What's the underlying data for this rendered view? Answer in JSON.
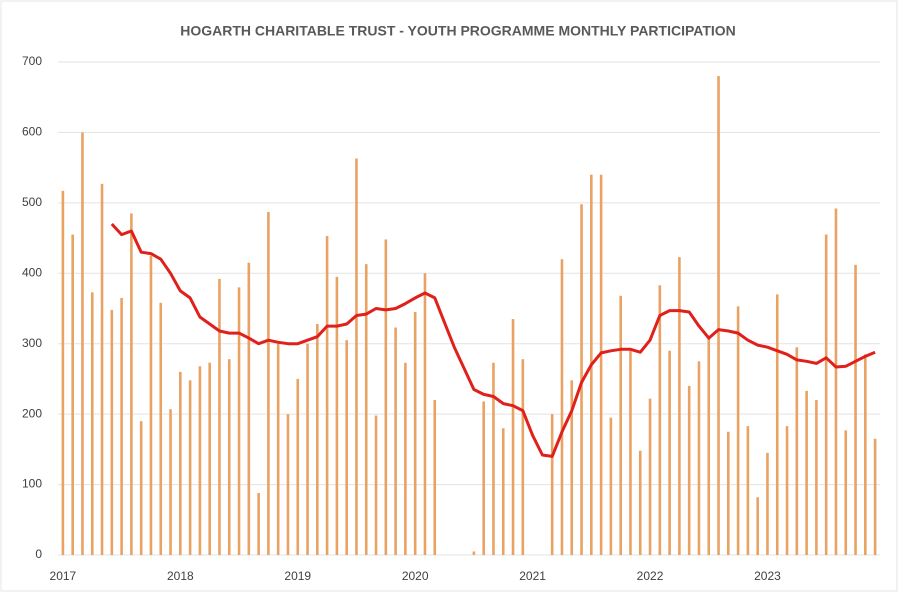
{
  "chart_data": {
    "type": "bar",
    "title": "HOGARTH CHARITABLE TRUST - YOUTH PROGRAMME MONTHLY PARTICIPATION",
    "series": [
      {
        "type": "bar",
        "color": "#e9a262",
        "values": [
          517,
          455,
          600,
          373,
          527,
          348,
          365,
          485,
          190,
          425,
          358,
          207,
          260,
          248,
          268,
          273,
          392,
          278,
          380,
          415,
          88,
          487,
          300,
          200,
          250,
          300,
          328,
          453,
          395,
          305,
          563,
          413,
          198,
          448,
          323,
          273,
          345,
          400,
          220,
          0,
          0,
          0,
          5,
          218,
          273,
          180,
          335,
          278,
          0,
          0,
          200,
          420,
          248,
          498,
          540,
          540,
          195,
          368,
          290,
          148,
          222,
          383,
          290,
          423,
          240,
          275,
          310,
          680,
          175,
          353,
          183,
          82,
          145,
          370,
          183,
          295,
          233,
          220,
          455,
          492,
          177,
          412,
          285,
          165
        ]
      },
      {
        "type": "line",
        "color": "#e0201b",
        "values": [
          null,
          null,
          null,
          null,
          null,
          470,
          455,
          460,
          430,
          428,
          420,
          400,
          375,
          365,
          338,
          328,
          318,
          315,
          315,
          308,
          300,
          305,
          302,
          300,
          300,
          305,
          310,
          325,
          325,
          328,
          340,
          342,
          350,
          348,
          350,
          357,
          365,
          372,
          365,
          330,
          295,
          265,
          235,
          228,
          225,
          215,
          212,
          205,
          170,
          142,
          140,
          175,
          205,
          245,
          270,
          287,
          290,
          292,
          292,
          288,
          305,
          340,
          347,
          347,
          345,
          325,
          308,
          320,
          318,
          315,
          305,
          298,
          295,
          290,
          285,
          277,
          275,
          272,
          280,
          267,
          268,
          275,
          282,
          288
        ]
      }
    ],
    "ylim": [
      0,
      700
    ],
    "yticks": [
      0,
      100,
      200,
      300,
      400,
      500,
      600,
      700
    ],
    "xlim": [
      0,
      84
    ],
    "xticks": [
      {
        "value": 0,
        "label": "2017"
      },
      {
        "value": 12,
        "label": "2018"
      },
      {
        "value": 24,
        "label": "2019"
      },
      {
        "value": 36,
        "label": "2020"
      },
      {
        "value": 48,
        "label": "2021"
      },
      {
        "value": 60,
        "label": "2022"
      },
      {
        "value": 72,
        "label": "2023"
      }
    ],
    "grid": true
  }
}
